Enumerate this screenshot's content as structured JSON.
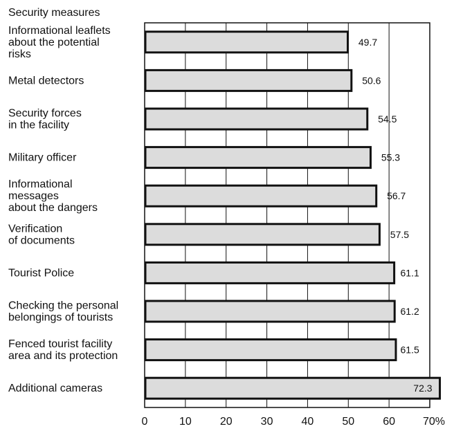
{
  "chart_data": {
    "type": "bar",
    "orientation": "horizontal",
    "heading": "Security measures",
    "categories": [
      "Informational leaflets about the potential risks",
      "Metal detectors",
      "Security forces in the facility",
      "Military officer",
      "Informational messages about the dangers",
      "Verification of documents",
      "Tourist Police",
      "Checking the personal belongings of tourists",
      "Fenced tourist facility area and its protection",
      "Additional cameras"
    ],
    "category_lines": [
      [
        "Informational leaflets",
        "about the potential",
        "risks"
      ],
      [
        "Metal  detectors"
      ],
      [
        "Security forces",
        "in the facility"
      ],
      [
        "Military officer"
      ],
      [
        "Informational",
        "messages",
        "about the dangers"
      ],
      [
        "Verification",
        "of documents"
      ],
      [
        "Tourist Police"
      ],
      [
        "Checking the personal",
        "belongings of tourists"
      ],
      [
        "Fenced tourist facility",
        "area and its protection"
      ],
      [
        "Additional cameras"
      ]
    ],
    "values": [
      49.7,
      50.6,
      54.5,
      55.3,
      56.7,
      57.5,
      61.1,
      61.2,
      61.5,
      72.3
    ],
    "value_labels": [
      "49.7",
      "50.6",
      "54.5",
      "55.3",
      "56.7",
      "57.5",
      "61.1",
      "61.2",
      "61.5",
      "72.3"
    ],
    "xticks": [
      "0",
      "10",
      "20",
      "30",
      "40",
      "50",
      "60",
      "70%"
    ],
    "xlim": [
      0,
      70
    ],
    "grid": "vertical",
    "bar_color": "#dcdcdc",
    "edge_color": "#111111"
  }
}
